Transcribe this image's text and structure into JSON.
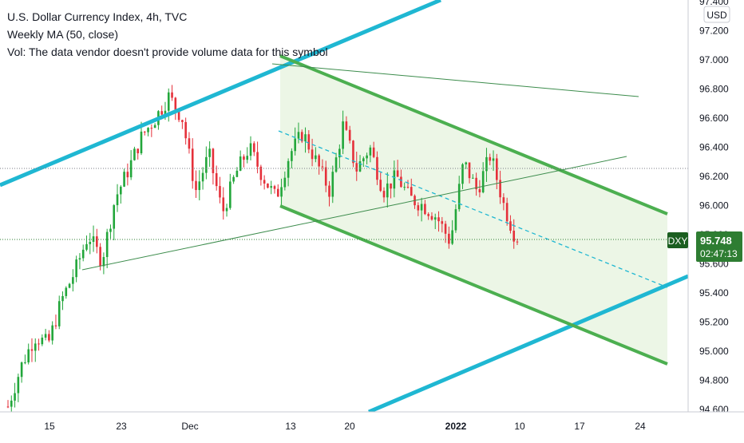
{
  "header": {
    "symbol_title": "U.S. Dollar Currency Index, 4h, TVC",
    "indicator": "Weekly MA (50, close)",
    "volume_note": "Vol: The data vendor doesn't provide volume data for this symbol"
  },
  "price_axis": {
    "currency": "USD",
    "ticks": [
      "97.400",
      "97.200",
      "97.000",
      "96.800",
      "96.600",
      "96.400",
      "96.200",
      "96.000",
      "95.800",
      "95.600",
      "95.400",
      "95.200",
      "95.000",
      "94.800",
      "94.600"
    ]
  },
  "time_axis": {
    "ticks": [
      "15",
      "23",
      "Dec",
      "13",
      "20",
      "2022",
      "10",
      "17",
      "24"
    ]
  },
  "last_price": {
    "ticker": "DXY",
    "price": "95.748",
    "countdown": "02:47:13"
  },
  "colors": {
    "up": "#26a69a",
    "down": "#ef5350",
    "up_candle": "#22a63a",
    "down_candle": "#e5303a",
    "channel": "#4caf50",
    "channel_fill": "#e8f5e3",
    "cyan": "#1fb7d2",
    "trendline": "#3c8c4c",
    "ticker_badge": "#1b5e20",
    "price_badge": "#2e7d32"
  },
  "chart_data": {
    "type": "candlestick",
    "title": "U.S. Dollar Currency Index, 4h, TVC",
    "ylim": [
      94.6,
      97.4
    ],
    "y_unit": "USD",
    "x_ticks": [
      "15",
      "23",
      "Dec",
      "13",
      "20",
      "2022",
      "10",
      "17",
      "24"
    ],
    "last_close": 95.748,
    "approx_closes": [
      [
        0.0,
        94.62
      ],
      [
        0.02,
        94.9
      ],
      [
        0.04,
        95.1
      ],
      [
        0.06,
        95.05
      ],
      [
        0.08,
        95.35
      ],
      [
        0.1,
        95.55
      ],
      [
        0.12,
        95.8
      ],
      [
        0.14,
        95.62
      ],
      [
        0.16,
        96.05
      ],
      [
        0.18,
        96.25
      ],
      [
        0.2,
        96.48
      ],
      [
        0.22,
        96.6
      ],
      [
        0.24,
        96.75
      ],
      [
        0.26,
        96.6
      ],
      [
        0.28,
        96.1
      ],
      [
        0.3,
        96.35
      ],
      [
        0.32,
        95.95
      ],
      [
        0.34,
        96.22
      ],
      [
        0.36,
        96.4
      ],
      [
        0.38,
        96.2
      ],
      [
        0.4,
        96.05
      ],
      [
        0.42,
        96.35
      ],
      [
        0.44,
        96.5
      ],
      [
        0.46,
        96.3
      ],
      [
        0.48,
        96.1
      ],
      [
        0.5,
        96.55
      ],
      [
        0.52,
        96.25
      ],
      [
        0.54,
        96.4
      ],
      [
        0.56,
        96.1
      ],
      [
        0.58,
        96.2
      ],
      [
        0.6,
        96.05
      ],
      [
        0.62,
        96.0
      ],
      [
        0.64,
        95.92
      ],
      [
        0.66,
        95.75
      ],
      [
        0.68,
        96.3
      ],
      [
        0.7,
        96.1
      ],
      [
        0.72,
        96.35
      ],
      [
        0.74,
        96.0
      ],
      [
        0.76,
        95.748
      ]
    ],
    "drawings": {
      "descending_channel": "parallel channel with dashed median",
      "ascending_lines": "two parallel cyan lines",
      "trendlines": "two thin lines"
    }
  }
}
